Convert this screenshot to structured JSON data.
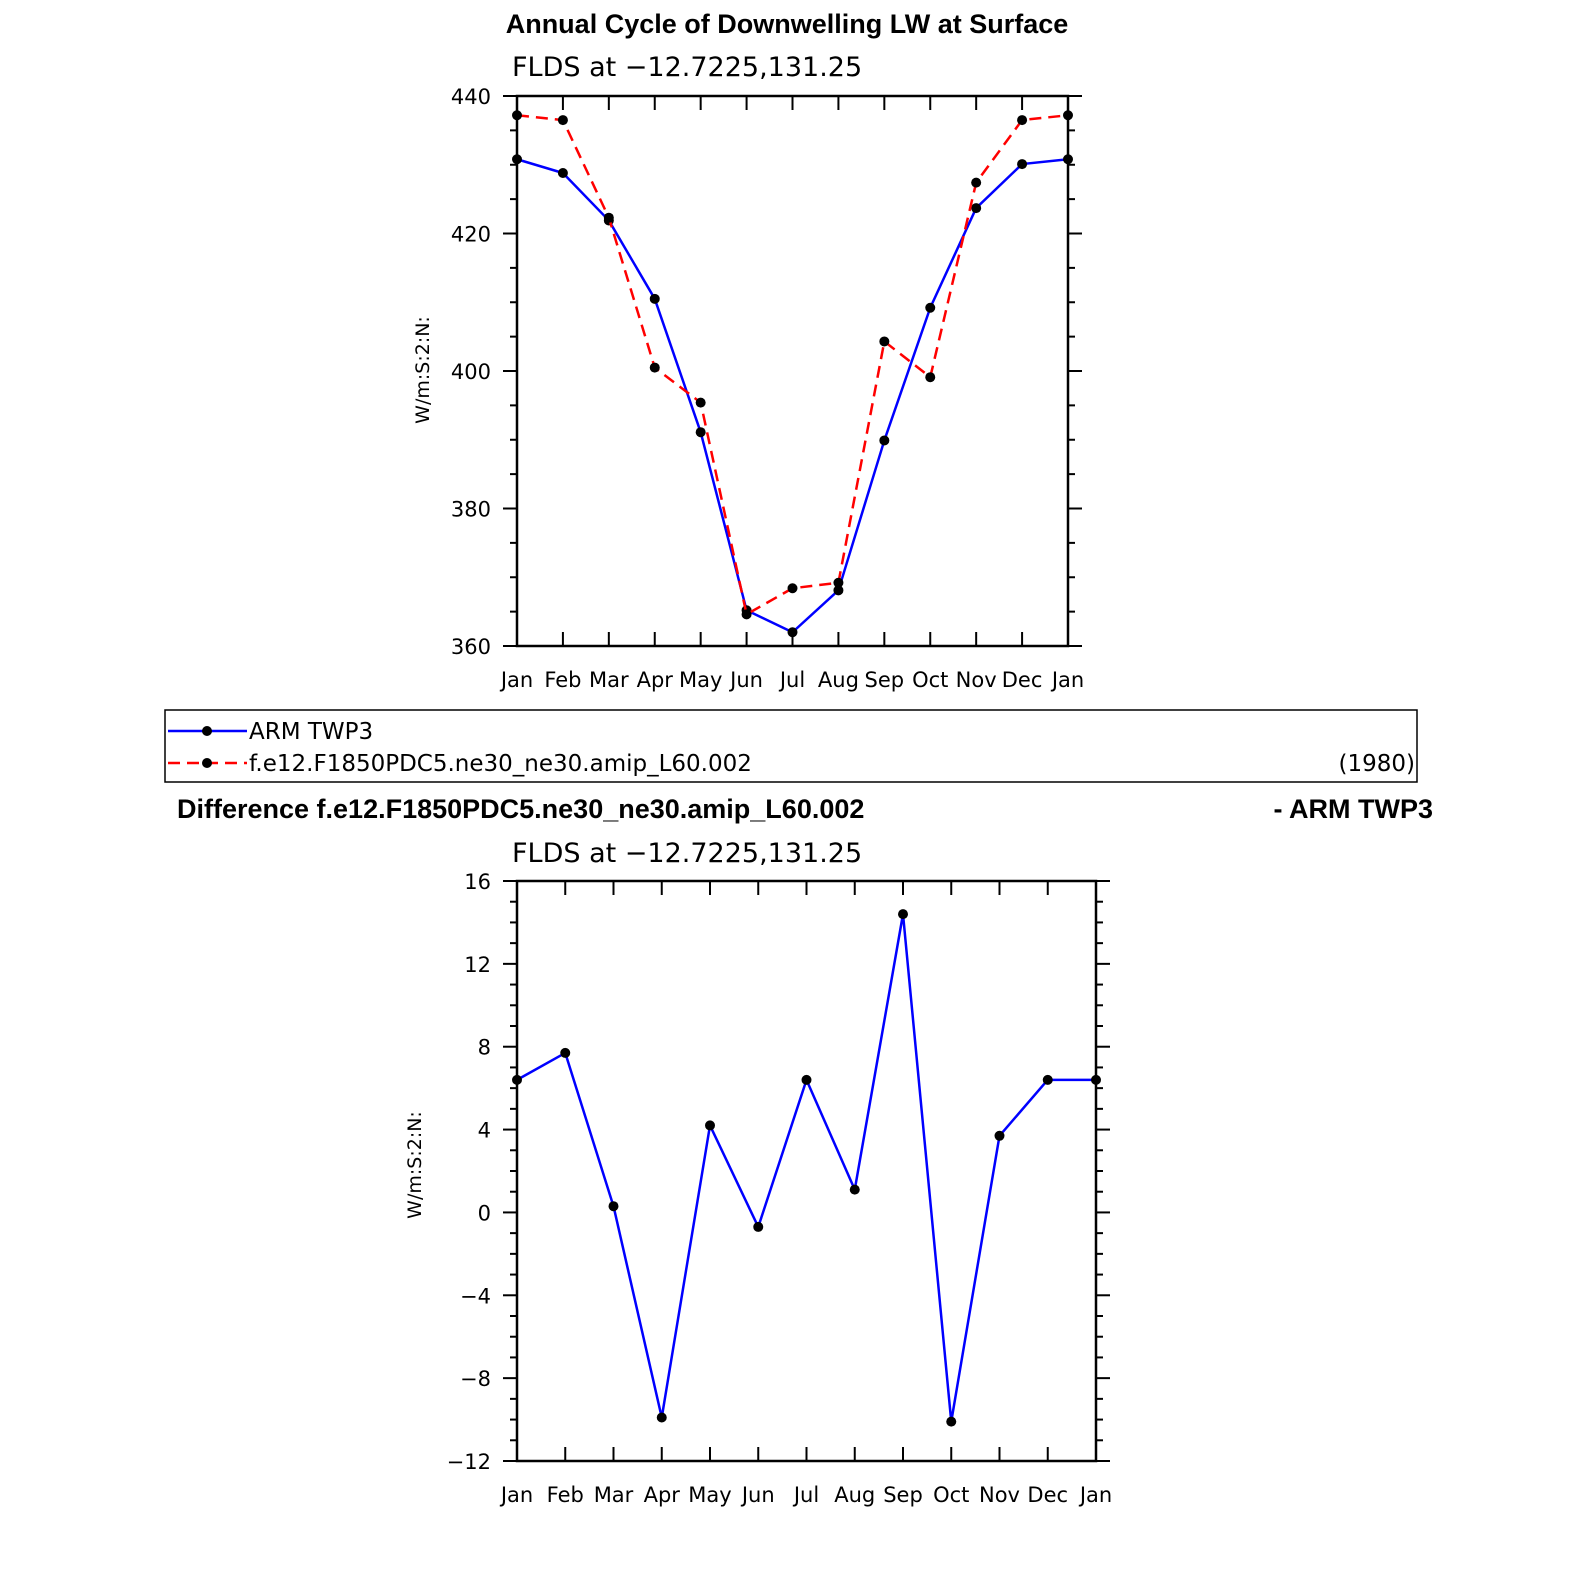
{
  "chart_data": [
    {
      "type": "line",
      "title": "Annual Cycle of Downwelling LW at Surface",
      "subtitle": "FLDS at −12.7225,131.25",
      "ylabel": "W/m:S:2:N:",
      "xlabel": "",
      "categories": [
        "Jan",
        "Feb",
        "Mar",
        "Apr",
        "May",
        "Jun",
        "Jul",
        "Aug",
        "Sep",
        "Oct",
        "Nov",
        "Dec",
        "Jan"
      ],
      "ylim": [
        360,
        440
      ],
      "yticks": [
        360,
        380,
        400,
        420,
        440
      ],
      "series": [
        {
          "name": "ARM TWP3",
          "color": "#0000ff",
          "dash": "solid",
          "values": [
            430.8,
            428.8,
            421.9,
            410.5,
            391.1,
            365.2,
            362.0,
            368.1,
            389.9,
            409.2,
            423.7,
            430.1,
            430.8
          ]
        },
        {
          "name": "f.e12.F1850PDC5.ne30_ne30.amip_L60.002",
          "color": "#ff0000",
          "dash": "dashed",
          "values": [
            437.2,
            436.5,
            422.3,
            400.5,
            395.4,
            364.6,
            368.4,
            369.2,
            404.3,
            399.1,
            427.4,
            436.5,
            437.2
          ]
        }
      ],
      "legend": {
        "position": "below",
        "note": "(1980)"
      }
    },
    {
      "type": "line",
      "title": "Difference f.e12.F1850PDC5.ne30_ne30.amip_L60.002",
      "title_right": "- ARM TWP3",
      "subtitle": "FLDS at −12.7225,131.25",
      "ylabel": "W/m:S:2:N:",
      "xlabel": "",
      "categories": [
        "Jan",
        "Feb",
        "Mar",
        "Apr",
        "May",
        "Jun",
        "Jul",
        "Aug",
        "Sep",
        "Oct",
        "Nov",
        "Dec",
        "Jan"
      ],
      "ylim": [
        -12,
        16
      ],
      "yticks": [
        -12,
        -8,
        -4,
        0,
        4,
        8,
        12,
        16
      ],
      "ytick_labels": [
        "−12",
        "−8",
        "−4",
        "0",
        "4",
        "8",
        "12",
        "16"
      ],
      "series": [
        {
          "color": "#0000ff",
          "dash": "solid",
          "values": [
            6.4,
            7.7,
            0.3,
            -9.9,
            4.2,
            -0.7,
            6.4,
            1.1,
            14.4,
            -10.1,
            3.7,
            6.4,
            6.4
          ]
        }
      ]
    }
  ]
}
